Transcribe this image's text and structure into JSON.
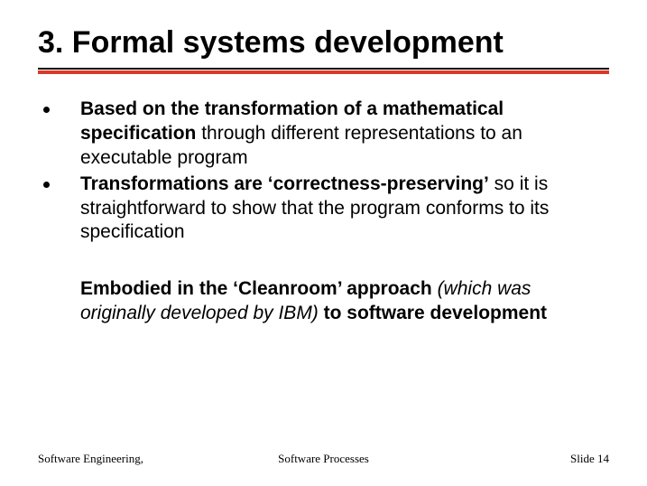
{
  "colors": {
    "underline_red": "#d73a2a",
    "bullet": "#000000"
  },
  "title": "3. Formal systems development",
  "bullets": [
    {
      "bold_lead": "Based on the transformation of a mathematical specification",
      "rest": " through different representations to an executable program"
    },
    {
      "bold_lead": "Transformations are ‘correctness-preserving’",
      "rest": " so it is straightforward to show that the program conforms to its specification"
    }
  ],
  "paragraph": {
    "seg1_bold": "Embodied in the ‘Cleanroom’ approach ",
    "seg2_italic": "(which was originally developed by IBM)",
    "seg3_bold": " to software development"
  },
  "footer": {
    "left": "Software Engineering,",
    "center": "Software Processes",
    "right": "Slide 14"
  }
}
